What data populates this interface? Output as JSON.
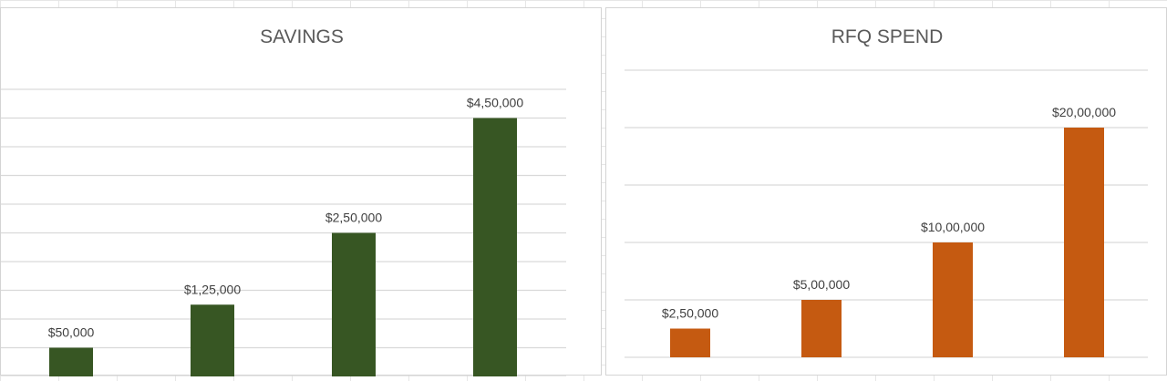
{
  "chart_data": [
    {
      "type": "bar",
      "title": "SAVINGS",
      "categories": [
        "",
        "",
        "",
        ""
      ],
      "values": [
        50000,
        125000,
        250000,
        450000
      ],
      "data_labels": [
        "$50,000",
        "$1,25,000",
        "$2,50,000",
        "$4,50,000"
      ],
      "ylim": [
        0,
        500000
      ],
      "y_tick_step": 50000,
      "grid": true,
      "legend": "none",
      "bar_color": "#375623"
    },
    {
      "type": "bar",
      "title": "RFQ SPEND",
      "categories": [
        "",
        "",
        "",
        ""
      ],
      "values": [
        250000,
        500000,
        1000000,
        2000000
      ],
      "data_labels": [
        "$2,50,000",
        "$5,00,000",
        "$10,00,000",
        "$20,00,000"
      ],
      "ylim": [
        0,
        2500000
      ],
      "y_tick_step": 500000,
      "grid": true,
      "legend": "none",
      "bar_color": "#C55A11"
    }
  ]
}
